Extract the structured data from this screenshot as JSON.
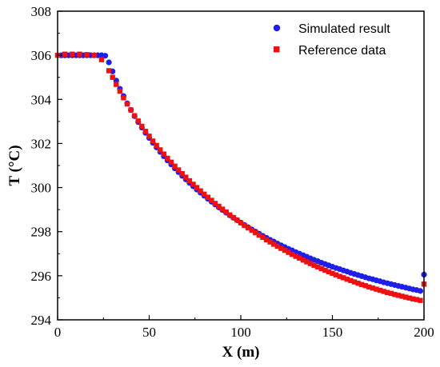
{
  "chart_data": {
    "type": "scatter",
    "xlabel": "X (m)",
    "ylabel": "T (°C)",
    "xlim": [
      0,
      200
    ],
    "ylim": [
      294,
      308
    ],
    "xticks": [
      "0",
      "50",
      "100",
      "150",
      "200"
    ],
    "yticks": [
      "294",
      "296",
      "298",
      "300",
      "302",
      "304",
      "306",
      "308"
    ],
    "grid": false,
    "legend_position": "top-right",
    "series": [
      {
        "name": "Simulated result",
        "color": "#1f1fe8",
        "marker": "circle",
        "x": [
          2,
          4,
          6,
          8,
          10,
          12,
          14,
          16,
          18,
          20,
          22,
          24,
          26,
          28,
          30,
          32,
          34,
          36,
          38,
          40,
          42,
          44,
          46,
          48,
          50,
          52,
          54,
          56,
          58,
          60,
          62,
          64,
          66,
          68,
          70,
          72,
          74,
          76,
          78,
          80,
          82,
          84,
          86,
          88,
          90,
          92,
          94,
          96,
          98,
          100,
          102,
          104,
          106,
          108,
          110,
          112,
          114,
          116,
          118,
          120,
          122,
          124,
          126,
          128,
          130,
          132,
          134,
          136,
          138,
          140,
          142,
          144,
          146,
          148,
          150,
          152,
          154,
          156,
          158,
          160,
          162,
          164,
          166,
          168,
          170,
          172,
          174,
          176,
          178,
          180,
          182,
          184,
          186,
          188,
          190,
          192,
          194,
          196,
          198,
          200
        ],
        "y": [
          306.0,
          306.0,
          306.0,
          306.0,
          306.0,
          306.0,
          306.0,
          306.0,
          306.0,
          306.0,
          306.0,
          306.0,
          305.98,
          305.68,
          305.27,
          304.85,
          304.48,
          304.15,
          303.82,
          303.52,
          303.24,
          302.97,
          302.72,
          302.48,
          302.25,
          302.03,
          301.82,
          301.62,
          301.42,
          301.23,
          301.05,
          300.87,
          300.7,
          300.53,
          300.37,
          300.21,
          300.06,
          299.91,
          299.77,
          299.63,
          299.49,
          299.36,
          299.23,
          299.1,
          298.98,
          298.86,
          298.74,
          298.63,
          298.52,
          298.41,
          298.3,
          298.2,
          298.1,
          298.0,
          297.91,
          297.81,
          297.72,
          297.63,
          297.55,
          297.46,
          297.38,
          297.3,
          297.22,
          297.15,
          297.07,
          297.0,
          296.93,
          296.86,
          296.79,
          296.72,
          296.66,
          296.59,
          296.53,
          296.47,
          296.41,
          296.35,
          296.3,
          296.24,
          296.19,
          296.13,
          296.08,
          296.03,
          295.98,
          295.93,
          295.88,
          295.84,
          295.79,
          295.75,
          295.7,
          295.66,
          295.62,
          295.58,
          295.54,
          295.5,
          295.46,
          295.42,
          295.38,
          295.35,
          295.31,
          296.05
        ]
      },
      {
        "name": "Reference data",
        "color": "#ee1111",
        "marker": "square",
        "x": [
          0,
          4,
          8,
          12,
          16,
          20,
          24,
          28,
          30,
          32,
          34,
          36,
          38,
          40,
          42,
          44,
          46,
          48,
          50,
          52,
          54,
          56,
          58,
          60,
          62,
          64,
          66,
          68,
          70,
          72,
          74,
          76,
          78,
          80,
          82,
          84,
          86,
          88,
          90,
          92,
          94,
          96,
          98,
          100,
          102,
          104,
          106,
          108,
          110,
          112,
          114,
          116,
          118,
          120,
          122,
          124,
          126,
          128,
          130,
          132,
          134,
          136,
          138,
          140,
          142,
          144,
          146,
          148,
          150,
          152,
          154,
          156,
          158,
          160,
          162,
          164,
          166,
          168,
          170,
          172,
          174,
          176,
          178,
          180,
          182,
          184,
          186,
          188,
          190,
          192,
          194,
          196,
          198,
          200
        ],
        "y": [
          306.0,
          306.05,
          306.05,
          306.05,
          306.03,
          306.0,
          305.8,
          305.3,
          305.0,
          304.68,
          304.37,
          304.07,
          303.79,
          303.52,
          303.26,
          303.02,
          302.78,
          302.55,
          302.33,
          302.11,
          301.91,
          301.71,
          301.52,
          301.33,
          301.15,
          300.97,
          300.8,
          300.63,
          300.47,
          300.31,
          300.15,
          300.0,
          299.85,
          299.7,
          299.56,
          299.42,
          299.28,
          299.15,
          299.02,
          298.89,
          298.76,
          298.64,
          298.52,
          298.4,
          298.28,
          298.17,
          298.06,
          297.95,
          297.84,
          297.74,
          297.63,
          297.53,
          297.43,
          297.34,
          297.24,
          297.15,
          297.06,
          296.97,
          296.88,
          296.8,
          296.71,
          296.63,
          296.55,
          296.47,
          296.4,
          296.32,
          296.25,
          296.18,
          296.11,
          296.04,
          295.97,
          295.91,
          295.84,
          295.78,
          295.72,
          295.66,
          295.6,
          295.55,
          295.49,
          295.44,
          295.39,
          295.34,
          295.29,
          295.24,
          295.2,
          295.15,
          295.11,
          295.07,
          295.03,
          294.99,
          294.95,
          294.92,
          294.88,
          295.62
        ]
      }
    ]
  }
}
